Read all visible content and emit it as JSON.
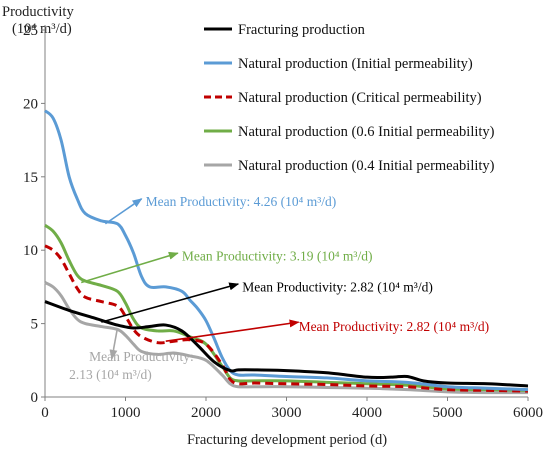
{
  "chart_data": {
    "type": "line",
    "ylabel_line1": "Productivity",
    "ylabel_line2": "(10⁴ m³/d)",
    "xlabel": "Fracturing development period (d)",
    "xlim": [
      0,
      6000
    ],
    "ylim": [
      0,
      25
    ],
    "xticks": [
      "0",
      "1000",
      "2000",
      "3000",
      "4000",
      "5000",
      "6000"
    ],
    "yticks": [
      "0",
      "5",
      "10",
      "15",
      "20",
      "25"
    ],
    "grid": false,
    "legend_position": "top-right",
    "series": [
      {
        "name": "Fracturing production",
        "color": "#000000",
        "dash": "solid",
        "x": [
          0,
          300,
          600,
          900,
          1100,
          1300,
          1500,
          1700,
          1900,
          2100,
          2300,
          2400,
          2600,
          3000,
          3500,
          4000,
          4300,
          4500,
          4700,
          5000,
          5500,
          6000
        ],
        "y": [
          6.5,
          5.9,
          5.4,
          4.9,
          4.7,
          4.8,
          4.9,
          4.5,
          3.5,
          2.4,
          1.8,
          1.85,
          1.85,
          1.8,
          1.65,
          1.35,
          1.35,
          1.4,
          1.1,
          0.95,
          0.9,
          0.75
        ]
      },
      {
        "name": "Natural production (Initial permeability)",
        "color": "#5b9bd5",
        "dash": "solid",
        "x": [
          0,
          100,
          200,
          300,
          400,
          500,
          700,
          900,
          1000,
          1100,
          1200,
          1300,
          1500,
          1700,
          1800,
          1900,
          2000,
          2100,
          2200,
          2300,
          2400,
          2600,
          3000,
          3500,
          4000,
          4500,
          5000,
          5500,
          6000
        ],
        "y": [
          19.5,
          19.0,
          17.5,
          15.0,
          13.5,
          12.5,
          12.0,
          11.8,
          11.0,
          9.8,
          8.2,
          7.5,
          7.5,
          7.2,
          6.6,
          6.0,
          5.2,
          4.0,
          2.7,
          1.8,
          1.5,
          1.5,
          1.4,
          1.3,
          1.1,
          1.0,
          0.7,
          0.6,
          0.5
        ]
      },
      {
        "name": "Natural production (Critical permeability)",
        "color": "#c00000",
        "dash": "dashed",
        "x": [
          0,
          100,
          200,
          300,
          400,
          500,
          700,
          900,
          1000,
          1100,
          1200,
          1400,
          1600,
          1800,
          2000,
          2200,
          2300,
          2400,
          2600,
          3000,
          3500,
          4000,
          4500,
          5000,
          5500,
          6000
        ],
        "y": [
          10.3,
          10.0,
          9.4,
          8.4,
          7.4,
          6.8,
          6.5,
          6.2,
          5.5,
          4.6,
          4.1,
          3.7,
          3.8,
          3.9,
          3.6,
          2.2,
          1.2,
          0.9,
          0.95,
          0.9,
          0.85,
          0.75,
          0.7,
          0.5,
          0.45,
          0.4
        ]
      },
      {
        "name": "Natural production (0.6 Initial permeability)",
        "color": "#70ad47",
        "dash": "solid",
        "x": [
          0,
          100,
          200,
          300,
          400,
          500,
          700,
          900,
          1000,
          1100,
          1200,
          1400,
          1600,
          1800,
          2000,
          2200,
          2300,
          2400,
          2600,
          3000,
          3500,
          4000,
          4500,
          5000,
          5500,
          6000
        ],
        "y": [
          11.7,
          11.3,
          10.5,
          9.3,
          8.3,
          7.9,
          7.6,
          7.2,
          6.4,
          5.3,
          4.7,
          4.5,
          4.5,
          4.1,
          3.6,
          2.1,
          1.3,
          1.1,
          1.1,
          1.1,
          1.0,
          0.9,
          0.8,
          0.55,
          0.5,
          0.45
        ]
      },
      {
        "name": "Natural production (0.4 Initial permeability)",
        "color": "#a6a6a6",
        "dash": "solid",
        "x": [
          0,
          100,
          200,
          300,
          400,
          500,
          700,
          900,
          1000,
          1100,
          1200,
          1400,
          1600,
          1800,
          2000,
          2200,
          2300,
          2400,
          2600,
          3000,
          3500,
          4000,
          4500,
          5000,
          5500,
          6000
        ],
        "y": [
          7.8,
          7.5,
          6.9,
          6.0,
          5.3,
          5.0,
          4.8,
          4.6,
          4.2,
          3.6,
          3.1,
          2.9,
          3.0,
          2.8,
          2.5,
          1.5,
          0.9,
          0.7,
          0.7,
          0.7,
          0.65,
          0.6,
          0.5,
          0.35,
          0.3,
          0.3
        ]
      }
    ],
    "annotations": [
      {
        "text": "Mean Productivity: 4.26 (10⁴ m³/d)",
        "color": "#5b9bd5",
        "arrow_from": [
          750,
          11.8
        ],
        "arrow_to": [
          1200,
          13.5
        ],
        "label_at": [
          1250,
          13.0
        ]
      },
      {
        "text": "Mean Productivity: 3.19 (10⁴ m³/d)",
        "color": "#70ad47",
        "arrow_from": [
          450,
          7.8
        ],
        "arrow_to": [
          1650,
          9.8
        ],
        "label_at": [
          1700,
          9.3
        ]
      },
      {
        "text": "Mean Productivity: 2.82 (10⁴ m³/d)",
        "color": "#000000",
        "arrow_from": [
          700,
          5.1
        ],
        "arrow_to": [
          2400,
          7.7
        ],
        "label_at": [
          2450,
          7.2
        ]
      },
      {
        "text": "Mean Productivity: 2.82 (10⁴ m³/d)",
        "color": "#c00000",
        "arrow_from": [
          1500,
          3.8
        ],
        "arrow_to": [
          3150,
          5.1
        ],
        "label_at": [
          3150,
          4.5
        ]
      },
      {
        "text_line1": "Mean Productivity:",
        "text_line2": "2.13 (10⁴ m³/d)",
        "color": "#a6a6a6",
        "arrow_from": [
          900,
          4.7
        ],
        "arrow_to": [
          830,
          2.6
        ],
        "label_at": [
          300,
          1.5
        ]
      }
    ]
  }
}
